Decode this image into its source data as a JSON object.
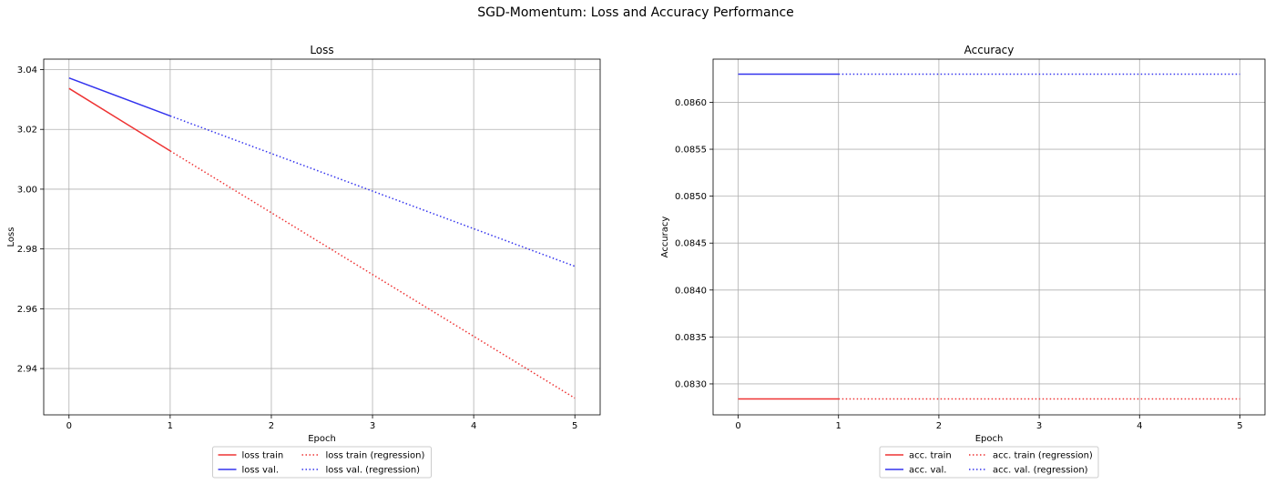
{
  "figure": {
    "suptitle": "SGD-Momentum: Loss and Accuracy Performance"
  },
  "colors": {
    "train": "#ee3333",
    "val": "#3333ee",
    "grid": "#b0b0b0"
  },
  "chart_data": [
    {
      "type": "line",
      "title": "Loss",
      "xlabel": "Epoch",
      "ylabel": "Loss",
      "xlim": [
        -0.25,
        5.25
      ],
      "ylim": [
        2.9245,
        3.0435
      ],
      "xticks": [
        0,
        1,
        2,
        3,
        4,
        5
      ],
      "xtick_labels": [
        "0",
        "1",
        "2",
        "3",
        "4",
        "5"
      ],
      "yticks": [
        2.94,
        2.96,
        2.98,
        3.0,
        3.02,
        3.04
      ],
      "ytick_labels": [
        "2.94",
        "2.96",
        "2.98",
        "3.00",
        "3.02",
        "3.04"
      ],
      "grid": true,
      "legend_placement": "below",
      "series": [
        {
          "name": "loss train",
          "style": "solid",
          "color": "train",
          "x": [
            0,
            1
          ],
          "y": [
            3.0337,
            3.0128
          ]
        },
        {
          "name": "loss val.",
          "style": "solid",
          "color": "val",
          "x": [
            0,
            1
          ],
          "y": [
            3.0372,
            3.0245
          ]
        },
        {
          "name": "loss train (regression)",
          "style": "dotted",
          "color": "train",
          "x": [
            1,
            5
          ],
          "y": [
            3.0128,
            2.9301
          ]
        },
        {
          "name": "loss val. (regression)",
          "style": "dotted",
          "color": "val",
          "x": [
            1,
            5
          ],
          "y": [
            3.0245,
            2.9742
          ]
        }
      ]
    },
    {
      "type": "line",
      "title": "Accuracy",
      "xlabel": "Epoch",
      "ylabel": "Accuracy",
      "xlim": [
        -0.25,
        5.25
      ],
      "ylim": [
        0.08267,
        0.08646
      ],
      "xticks": [
        0,
        1,
        2,
        3,
        4,
        5
      ],
      "xtick_labels": [
        "0",
        "1",
        "2",
        "3",
        "4",
        "5"
      ],
      "yticks": [
        0.083,
        0.0835,
        0.084,
        0.0845,
        0.085,
        0.0855,
        0.086
      ],
      "ytick_labels": [
        "0.0830",
        "0.0835",
        "0.0840",
        "0.0845",
        "0.0850",
        "0.0855",
        "0.0860"
      ],
      "grid": true,
      "legend_placement": "below",
      "series": [
        {
          "name": "acc. train",
          "style": "solid",
          "color": "train",
          "x": [
            0,
            1
          ],
          "y": [
            0.08284,
            0.08284
          ]
        },
        {
          "name": "acc. val.",
          "style": "solid",
          "color": "val",
          "x": [
            0,
            1
          ],
          "y": [
            0.0863,
            0.0863
          ]
        },
        {
          "name": "acc. train (regression)",
          "style": "dotted",
          "color": "train",
          "x": [
            1,
            5
          ],
          "y": [
            0.08284,
            0.08284
          ]
        },
        {
          "name": "acc. val. (regression)",
          "style": "dotted",
          "color": "val",
          "x": [
            1,
            5
          ],
          "y": [
            0.0863,
            0.0863
          ]
        }
      ]
    }
  ]
}
